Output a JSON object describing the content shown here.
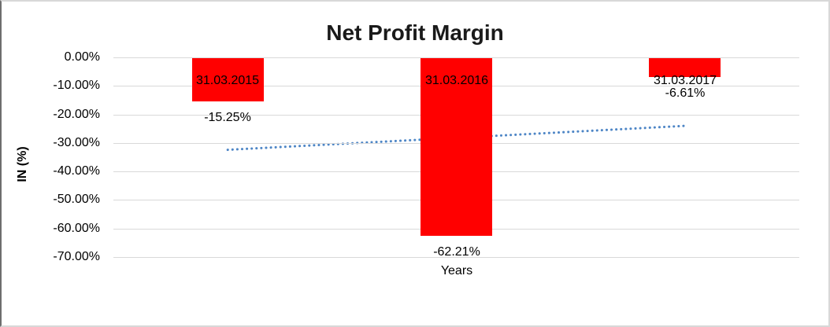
{
  "chart_data": {
    "type": "bar",
    "title": "Net Profit Margin",
    "xlabel": "Years",
    "ylabel": "IN (%)",
    "categories": [
      "31.03.2015",
      "31.03.2016",
      "31.03.2017"
    ],
    "values": [
      -15.25,
      -62.21,
      -6.61
    ],
    "value_labels": [
      "-15.25%",
      "-62.21%",
      "-6.61%"
    ],
    "y_ticks": [
      {
        "value": 0,
        "label": "0.00%"
      },
      {
        "value": -10,
        "label": "-10.00%"
      },
      {
        "value": -20,
        "label": "-20.00%"
      },
      {
        "value": -30,
        "label": "-30.00%"
      },
      {
        "value": -40,
        "label": "-40.00%"
      },
      {
        "value": -50,
        "label": "-50.00%"
      },
      {
        "value": -60,
        "label": "-60.00%"
      },
      {
        "value": -70,
        "label": "-70.00%"
      }
    ],
    "ylim": [
      -70,
      0
    ],
    "grid": true,
    "legend": "none",
    "bar_color": "#ff0000",
    "label_color": "#000000",
    "gridline_color": "#d9d9d9",
    "trendline": {
      "type": "linear",
      "style": "dotted",
      "color": "#4e86c6",
      "start_value": -32.4,
      "end_value": -24.0
    }
  }
}
